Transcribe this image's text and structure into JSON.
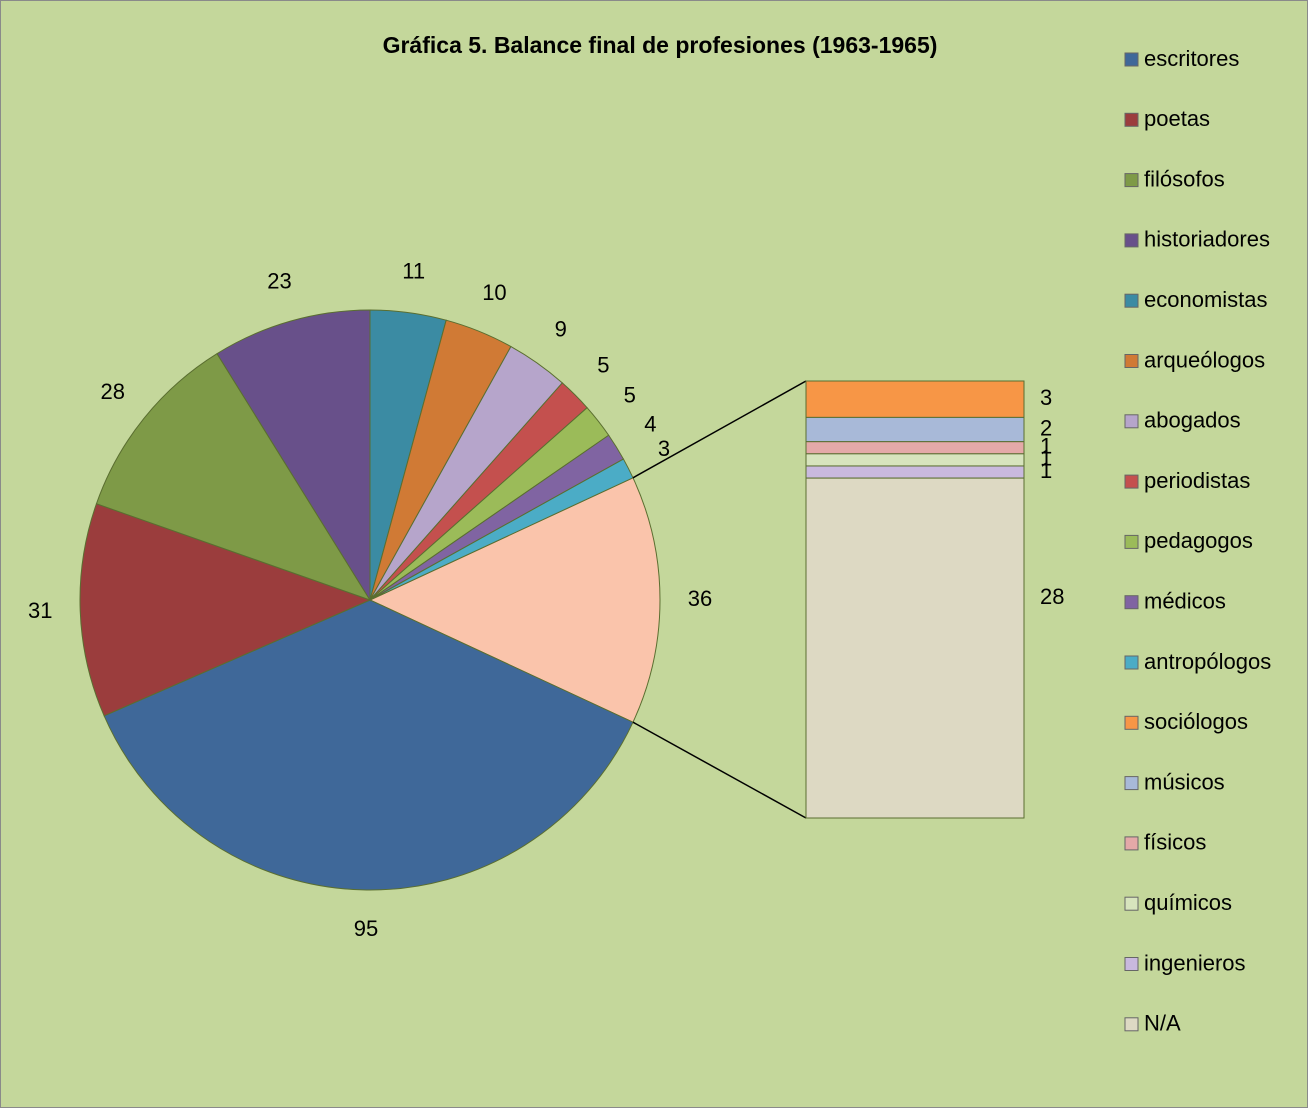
{
  "chart_data": {
    "type": "pie-of-bar",
    "title": "Gráfica 5. Balance final de profesiones (1963-1965)",
    "categories": [
      "escritores",
      "poetas",
      "filósofos",
      "historiadores",
      "economistas",
      "arqueólogos",
      "abogados",
      "periodistas",
      "pedagogos",
      "médicos",
      "antropólogos",
      "sociólogos",
      "músicos",
      "físicos",
      "químicos",
      "ingenieros",
      "N/A"
    ],
    "values": [
      95,
      31,
      28,
      23,
      11,
      10,
      9,
      5,
      5,
      4,
      3,
      3,
      2,
      1,
      1,
      1,
      28
    ],
    "colors": [
      "#3f6899",
      "#9b3d3d",
      "#7e9a47",
      "#68508a",
      "#3b8ba3",
      "#d07a35",
      "#b6a5cb",
      "#c4504e",
      "#9bbb59",
      "#8064a2",
      "#4bacc6",
      "#f79646",
      "#a8b9d8",
      "#e4a9a8",
      "#d7e4bd",
      "#c9b9de",
      "#ddd9c3"
    ],
    "secondary_count": 6,
    "other_value": 36,
    "other_color": "#fac4ab",
    "legend": "right"
  }
}
